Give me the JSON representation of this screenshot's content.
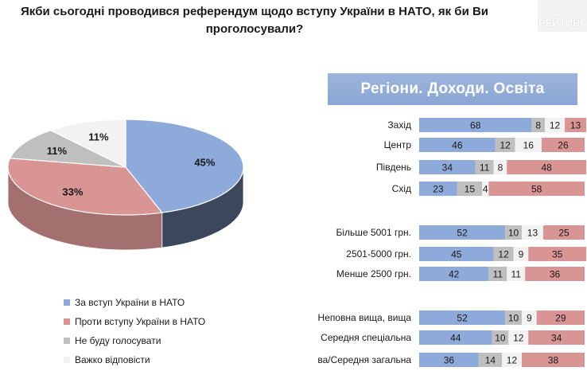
{
  "title": "Якби сьогодні проводився референдум щодо вступу України в НАТО, як би Ви проголосували?",
  "logo_text": "РЕЙТИНГ",
  "banner": "Регіони. Доходи. Освіта",
  "colors": {
    "for": "#8eaadb",
    "against": "#d99594",
    "wont_vote": "#bfbfbf",
    "hard_to_say": "#f2f2f2"
  },
  "legend": [
    {
      "label": "За вступ України в НАТО",
      "color": "#8eaadb"
    },
    {
      "label": "Проти вступу України в НАТО",
      "color": "#d99594"
    },
    {
      "label": "Не буду голосувати",
      "color": "#bfbfbf"
    },
    {
      "label": "Важко відповісти",
      "color": "#f2f2f2"
    }
  ],
  "chart_data": [
    {
      "type": "pie",
      "labels": [
        "За вступ України в НАТО",
        "Проти вступу України в НАТО",
        "Не буду голосувати",
        "Важко відповісти"
      ],
      "values": [
        45,
        33,
        11,
        11
      ],
      "value_labels": [
        "45%",
        "33%",
        "11%",
        "11%"
      ]
    },
    {
      "type": "bar",
      "stacked": true,
      "orientation": "horizontal",
      "groups": [
        {
          "categories": [
            "Захід",
            "Центр",
            "Південь",
            "Схід"
          ]
        },
        {
          "categories": [
            "Більше 5001 грн.",
            "2501-5000 грн.",
            "Менше 2500 грн."
          ]
        },
        {
          "categories": [
            "Неповна вища, вища",
            "Середня спеціальна",
            "Початкова/Середня загальна"
          ]
        }
      ],
      "categories": [
        "Захід",
        "Центр",
        "Південь",
        "Схід",
        "Більше 5001 грн.",
        "2501-5000 грн.",
        "Менше 2500 грн.",
        "Неповна вища, вища",
        "Середня спеціальна",
        "Початкова/Середня загальна"
      ],
      "series": [
        {
          "name": "За вступ України в НАТО",
          "values": [
            68,
            46,
            34,
            23,
            52,
            45,
            42,
            52,
            44,
            36
          ]
        },
        {
          "name": "Не буду голосувати",
          "values": [
            8,
            12,
            11,
            15,
            10,
            12,
            11,
            10,
            10,
            14
          ]
        },
        {
          "name": "Важко відповісти",
          "values": [
            12,
            16,
            8,
            4,
            13,
            9,
            11,
            9,
            12,
            12
          ]
        },
        {
          "name": "Проти вступу України в НАТО",
          "values": [
            13,
            26,
            48,
            58,
            25,
            35,
            36,
            29,
            34,
            38
          ]
        }
      ]
    }
  ]
}
